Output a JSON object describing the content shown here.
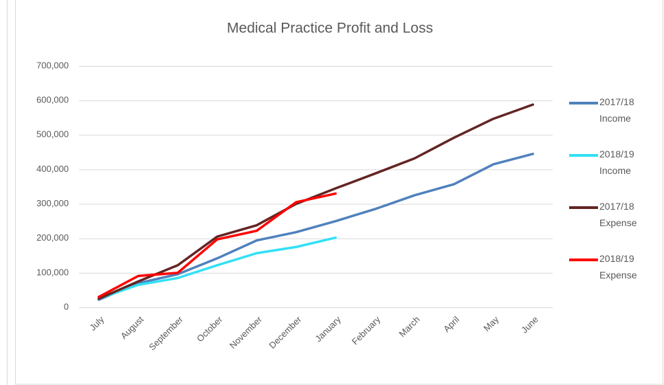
{
  "chart_data": {
    "type": "line",
    "title": "Medical Practice Profit and Loss",
    "categories": [
      "July",
      "August",
      "September",
      "October",
      "November",
      "December",
      "January",
      "February",
      "March",
      "April",
      "May",
      "June"
    ],
    "series": [
      {
        "name": "2017/18 Income",
        "color": "#4f81bd",
        "values": [
          22000,
          70000,
          96000,
          142000,
          194000,
          218000,
          250000,
          285000,
          325000,
          357000,
          415000,
          445000
        ]
      },
      {
        "name": "2018/19 Income",
        "color": "#33e0f5",
        "values": [
          25000,
          65000,
          85000,
          122000,
          157000,
          175000,
          202000,
          null,
          null,
          null,
          null,
          null
        ]
      },
      {
        "name": "2017/18 Expense",
        "color": "#632523",
        "values": [
          25000,
          75000,
          122000,
          205000,
          238000,
          300000,
          345000,
          388000,
          432000,
          492000,
          547000,
          588000
        ]
      },
      {
        "name": "2018/19 Expense",
        "color": "#ff0000",
        "values": [
          30000,
          91000,
          100000,
          197000,
          222000,
          305000,
          330000,
          null,
          null,
          null,
          null,
          null
        ]
      }
    ],
    "ylim": [
      0,
      700000
    ],
    "yticks": [
      0,
      {
        "value": 100000,
        "label": "100,000"
      },
      {
        "value": 200000,
        "label": "200,000"
      },
      {
        "value": 300000,
        "label": "300,000"
      },
      {
        "value": 400000,
        "label": "400,000"
      },
      {
        "value": 500000,
        "label": "500,000"
      },
      {
        "value": 600000,
        "label": "600,000"
      },
      {
        "value": 700000,
        "label": "700,000"
      }
    ],
    "grid": true,
    "legend": "right"
  }
}
